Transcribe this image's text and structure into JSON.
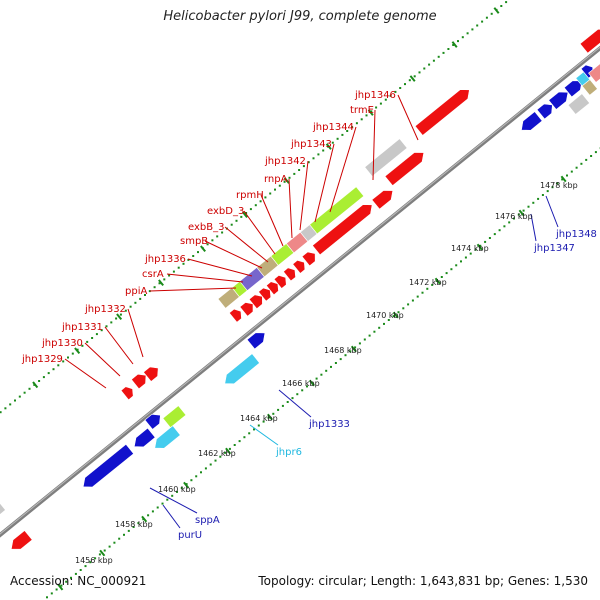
{
  "header": {
    "title": "Helicobacter pylori J99, complete genome"
  },
  "footer": {
    "accession": "Accession: NC_000921",
    "summary": "Topology: circular; Length: 1,643,831 bp; Genes: 1,530"
  },
  "colors": {
    "backbone": "#7f7f7f",
    "tick": "#1a8a1a",
    "forward_label": "#cc0000",
    "reverse_label": "#1c1cb0",
    "rna_label": "#20b8e0",
    "gene_red": "#ee1111",
    "gene_blue": "#1111cc",
    "gene_cyan": "#44ccee",
    "gene_gray": "#c8c8c8",
    "gene_green": "#aaee33",
    "gene_pink": "#ee8888",
    "gene_tan": "#bfae7a",
    "gene_purple": "#7766cc"
  },
  "scale": {
    "ticks": [
      "1456 kbp",
      "1458 kbp",
      "1460 kbp",
      "1462 kbp",
      "1464 kbp",
      "1466 kbp",
      "1468 kbp",
      "1470 kbp",
      "1472 kbp",
      "1474 kbp",
      "1476 kbp",
      "1478 kbp"
    ]
  },
  "labels": {
    "top": [
      "jhp1329",
      "jhp1330",
      "jhp1331",
      "jhp1332",
      "ppiA",
      "csrA",
      "jhp1336",
      "smpB",
      "exbB_3",
      "exbD_3",
      "rpmH",
      "rnpA",
      "jhp1342",
      "jhp1343",
      "jhp1344",
      "trmE",
      "jhp1346"
    ],
    "bottom": [
      "purU",
      "sppA",
      "jhpr6",
      "jhp1333",
      "jhp1347",
      "jhp1348"
    ]
  }
}
